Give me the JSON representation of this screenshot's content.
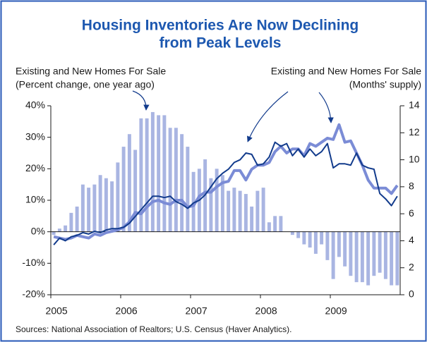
{
  "chart_data": {
    "type": "bar",
    "title": [
      "Housing Inventories Are Now Declining",
      "from Peak Levels"
    ],
    "annotations": [
      {
        "side": "left",
        "lines": [
          "Existing and New Homes For Sale",
          "(Percent change, one year ago)"
        ]
      },
      {
        "side": "right",
        "lines": [
          "Existing and New Homes For Sale",
          "(Months' supply)"
        ]
      }
    ],
    "source": "Sources: National Association of Realtors; U.S. Census (Haver Analytics).",
    "categories": [
      "2005",
      null,
      null,
      null,
      null,
      null,
      null,
      null,
      null,
      null,
      null,
      null,
      "2006",
      null,
      null,
      null,
      null,
      null,
      null,
      null,
      null,
      null,
      null,
      null,
      "2007",
      null,
      null,
      null,
      null,
      null,
      null,
      null,
      null,
      null,
      null,
      null,
      "2008",
      null,
      null,
      null,
      null,
      null,
      null,
      null,
      null,
      null,
      null,
      null,
      "2009",
      null,
      null,
      null,
      null,
      null,
      null,
      null,
      null,
      null,
      null,
      null
    ],
    "series": [
      {
        "type": "bar",
        "color": "#a9b5e2",
        "values": [
          -1,
          1,
          2,
          6,
          8,
          15,
          14,
          15,
          18,
          17,
          16,
          22,
          27,
          31,
          26,
          36,
          36,
          38,
          37,
          37,
          33,
          33,
          31,
          27,
          19,
          20,
          23,
          17,
          20,
          18,
          13,
          14,
          13,
          12,
          8,
          13,
          14,
          3,
          5,
          5,
          0,
          -1,
          -2,
          -4,
          -5,
          -7,
          -4,
          -9,
          -15,
          -8,
          -11,
          -14,
          -16,
          -16,
          -17,
          -14,
          -13,
          -15,
          -17,
          -17
        ]
      },
      {
        "type": "line",
        "axis": "y2",
        "color": "#7b8cd6",
        "values": [
          4.3,
          4.2,
          4.1,
          4.2,
          4.4,
          4.3,
          4.2,
          4.5,
          4.4,
          4.6,
          4.7,
          4.8,
          5.0,
          5.4,
          6.1,
          6.0,
          6.5,
          6.9,
          7.0,
          6.8,
          6.7,
          7.0,
          7.0,
          6.5,
          6.6,
          7.3,
          7.6,
          7.6,
          8.0,
          8.3,
          8.4,
          9.2,
          9.2,
          8.5,
          9.3,
          9.6,
          9.6,
          9.8,
          10.6,
          11.0,
          10.5,
          10.8,
          10.8,
          10.3,
          11.2,
          11.0,
          11.3,
          11.6,
          11.5,
          12.6,
          11.3,
          11.4,
          10.5,
          9.6,
          8.5,
          7.9,
          7.9,
          7.9,
          7.5,
          8.1
        ]
      },
      {
        "type": "line",
        "axis": "y2",
        "color": "#123b8c",
        "values": [
          3.7,
          4.2,
          4.0,
          4.3,
          4.4,
          4.6,
          4.5,
          4.7,
          4.6,
          4.8,
          4.9,
          4.9,
          5.0,
          5.3,
          5.8,
          6.3,
          6.8,
          7.3,
          7.3,
          7.2,
          7.3,
          6.9,
          6.7,
          6.4,
          6.8,
          7.0,
          7.4,
          8.0,
          8.6,
          9.0,
          9.3,
          9.8,
          10.0,
          10.5,
          10.4,
          9.6,
          9.7,
          10.2,
          11.3,
          11.0,
          11.2,
          10.3,
          10.8,
          10.2,
          10.8,
          10.3,
          10.6,
          11.2,
          9.4,
          9.7,
          9.7,
          9.6,
          10.5,
          9.6,
          9.4,
          9.3,
          7.5,
          7.1,
          6.6,
          7.3
        ]
      }
    ],
    "ylim": [
      -20,
      40
    ],
    "yticks": [
      {
        "value": -20,
        "label": "-20%"
      },
      {
        "value": -10,
        "label": "-10%"
      },
      {
        "value": 0,
        "label": "0%"
      },
      {
        "value": 10,
        "label": "10%"
      },
      {
        "value": 20,
        "label": "20%"
      },
      {
        "value": 30,
        "label": "30%"
      },
      {
        "value": 40,
        "label": "40%"
      }
    ],
    "y2lim": [
      0,
      14
    ],
    "y2ticks": [
      0,
      2,
      4,
      6,
      8,
      10,
      12,
      14
    ],
    "title_color": "#1d58b0"
  }
}
